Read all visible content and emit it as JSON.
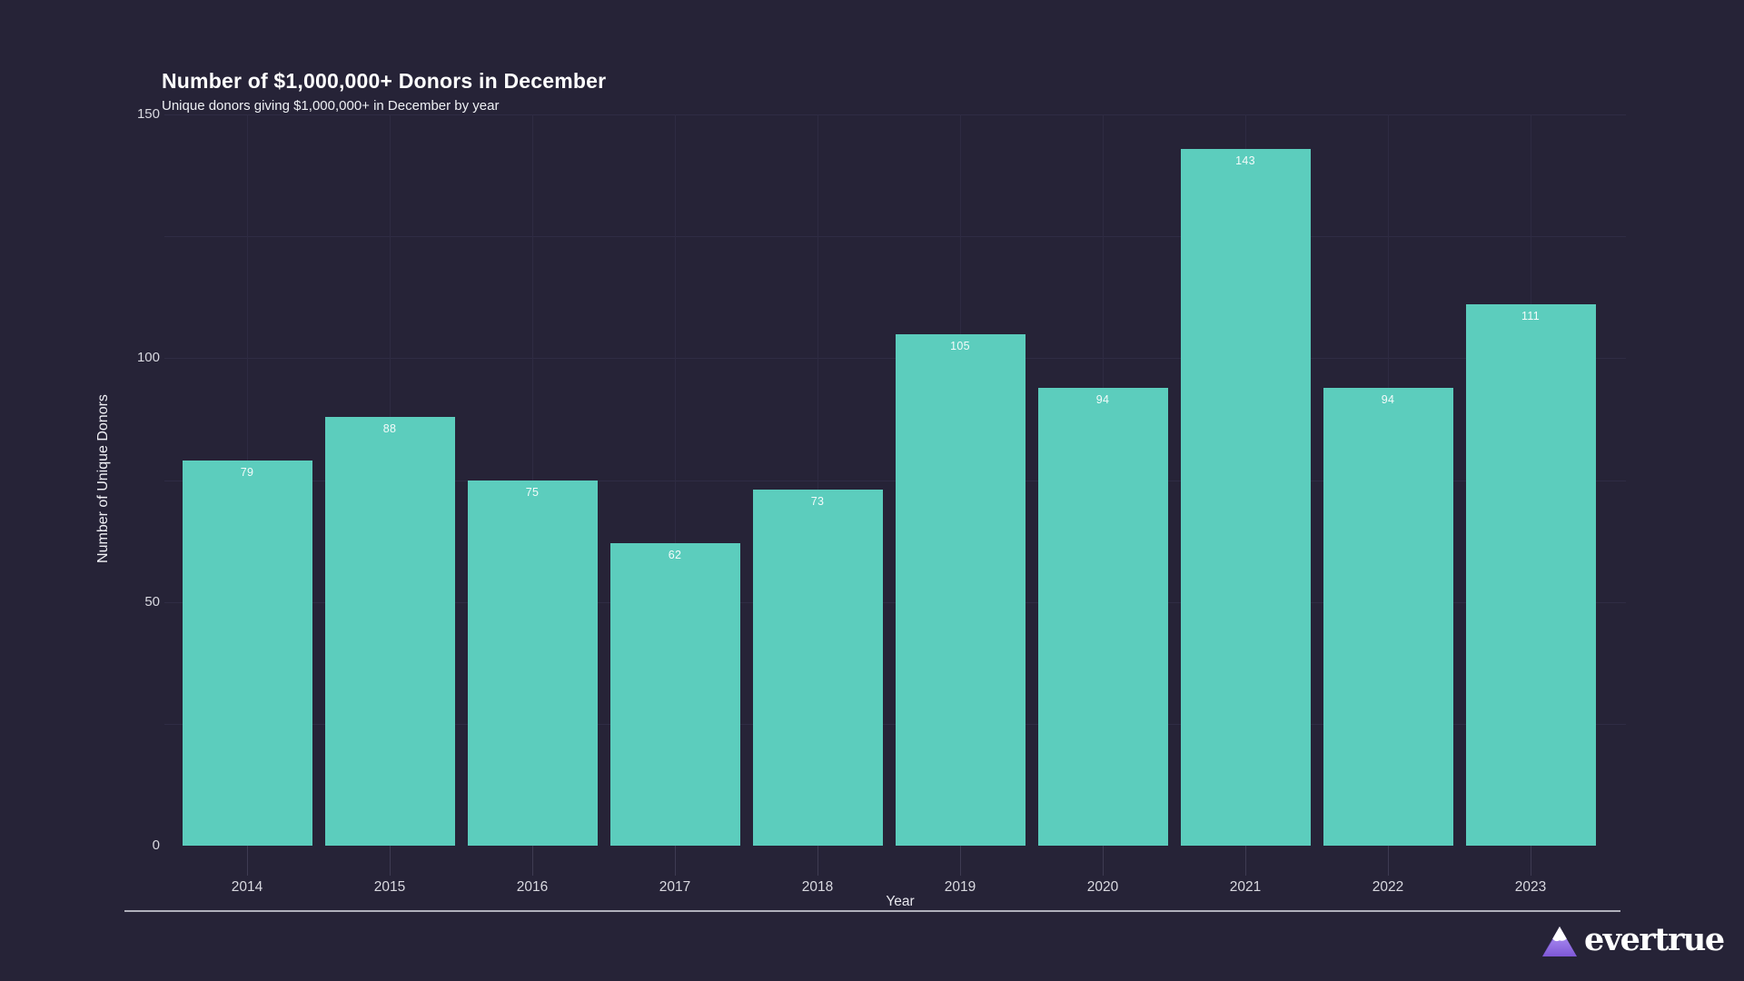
{
  "chart_data": {
    "type": "bar",
    "title": "Number of $1,000,000+ Donors in December",
    "subtitle": "Unique donors giving $1,000,000+ in December by year",
    "categories": [
      "2014",
      "2015",
      "2016",
      "2017",
      "2018",
      "2019",
      "2020",
      "2021",
      "2022",
      "2023"
    ],
    "values": [
      79,
      88,
      75,
      62,
      73,
      105,
      94,
      143,
      94,
      111
    ],
    "xlabel": "Year",
    "ylabel": "Number of Unique Donors",
    "ylim": [
      0,
      150
    ],
    "yticks": [
      0,
      50,
      100,
      150
    ],
    "gridline_step": 25,
    "grid": "on",
    "legend": "none",
    "bar_value_labels": "inside-top"
  },
  "colors": {
    "background": "#262337",
    "bar": "#5ccdbd",
    "gridline": "#2e2b42",
    "axis_rule": "#c9c9d2",
    "title_text": "#ffffff",
    "tick_text": "#d9d9e0",
    "logo_purple": "#7e57d6",
    "logo_purple_light": "#b9a3f5"
  },
  "branding": {
    "logo_text": "evertrue",
    "logo_icon": "mountain-triangle-icon"
  }
}
